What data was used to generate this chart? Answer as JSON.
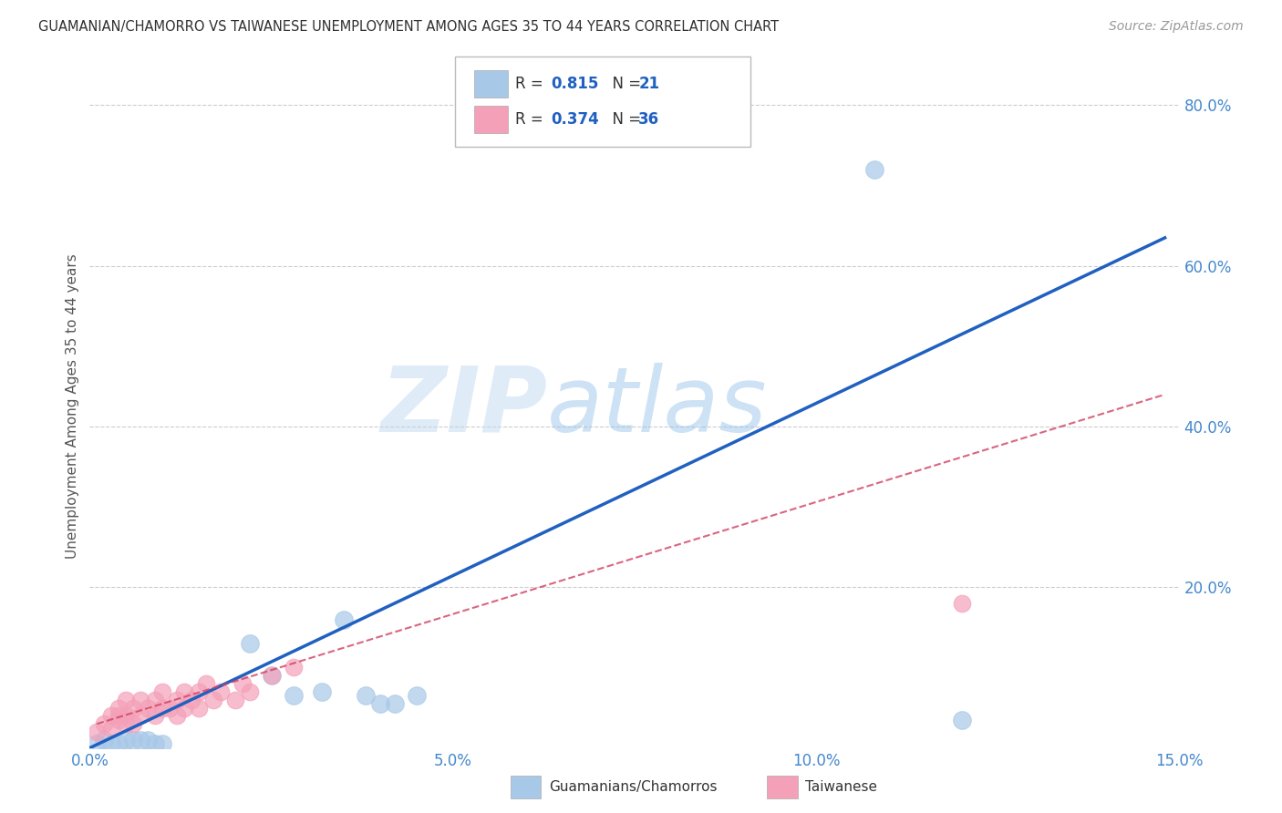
{
  "title": "GUAMANIAN/CHAMORRO VS TAIWANESE UNEMPLOYMENT AMONG AGES 35 TO 44 YEARS CORRELATION CHART",
  "source": "Source: ZipAtlas.com",
  "ylabel": "Unemployment Among Ages 35 to 44 years",
  "xlim": [
    0,
    0.15
  ],
  "ylim": [
    0,
    0.85
  ],
  "xtick_labels": [
    "0.0%",
    "5.0%",
    "10.0%",
    "15.0%"
  ],
  "xtick_vals": [
    0.0,
    0.05,
    0.1,
    0.15
  ],
  "ytick_labels": [
    "20.0%",
    "40.0%",
    "60.0%",
    "80.0%"
  ],
  "ytick_vals": [
    0.2,
    0.4,
    0.6,
    0.8
  ],
  "watermark_zip": "ZIP",
  "watermark_atlas": "atlas",
  "blue_color": "#a8c8e8",
  "pink_color": "#f4a0b8",
  "line_blue": "#2060c0",
  "line_pink": "#d04060",
  "title_color": "#303030",
  "axis_label_color": "#555555",
  "tick_color": "#4488cc",
  "guam_x": [
    0.001,
    0.002,
    0.003,
    0.004,
    0.005,
    0.006,
    0.007,
    0.008,
    0.009,
    0.01,
    0.022,
    0.025,
    0.028,
    0.032,
    0.035,
    0.038,
    0.04,
    0.042,
    0.045,
    0.108,
    0.12
  ],
  "guam_y": [
    0.005,
    0.01,
    0.005,
    0.005,
    0.01,
    0.01,
    0.01,
    0.01,
    0.005,
    0.005,
    0.13,
    0.09,
    0.065,
    0.07,
    0.16,
    0.065,
    0.055,
    0.055,
    0.065,
    0.72,
    0.035
  ],
  "taiwan_x": [
    0.001,
    0.002,
    0.003,
    0.003,
    0.004,
    0.004,
    0.004,
    0.005,
    0.005,
    0.005,
    0.006,
    0.006,
    0.007,
    0.007,
    0.008,
    0.009,
    0.009,
    0.01,
    0.01,
    0.011,
    0.012,
    0.012,
    0.013,
    0.013,
    0.014,
    0.015,
    0.015,
    0.016,
    0.017,
    0.018,
    0.02,
    0.021,
    0.022,
    0.12,
    0.025,
    0.028
  ],
  "taiwan_y": [
    0.02,
    0.03,
    0.04,
    0.025,
    0.035,
    0.04,
    0.05,
    0.03,
    0.04,
    0.06,
    0.03,
    0.05,
    0.04,
    0.06,
    0.05,
    0.04,
    0.06,
    0.05,
    0.07,
    0.05,
    0.04,
    0.06,
    0.05,
    0.07,
    0.06,
    0.05,
    0.07,
    0.08,
    0.06,
    0.07,
    0.06,
    0.08,
    0.07,
    0.18,
    0.09,
    0.1
  ],
  "blue_line_x0": 0.0,
  "blue_line_y0": 0.0,
  "blue_line_x1": 0.148,
  "blue_line_y1": 0.635,
  "pink_line_x0": 0.001,
  "pink_line_y0": 0.03,
  "pink_line_x1": 0.148,
  "pink_line_y1": 0.44
}
